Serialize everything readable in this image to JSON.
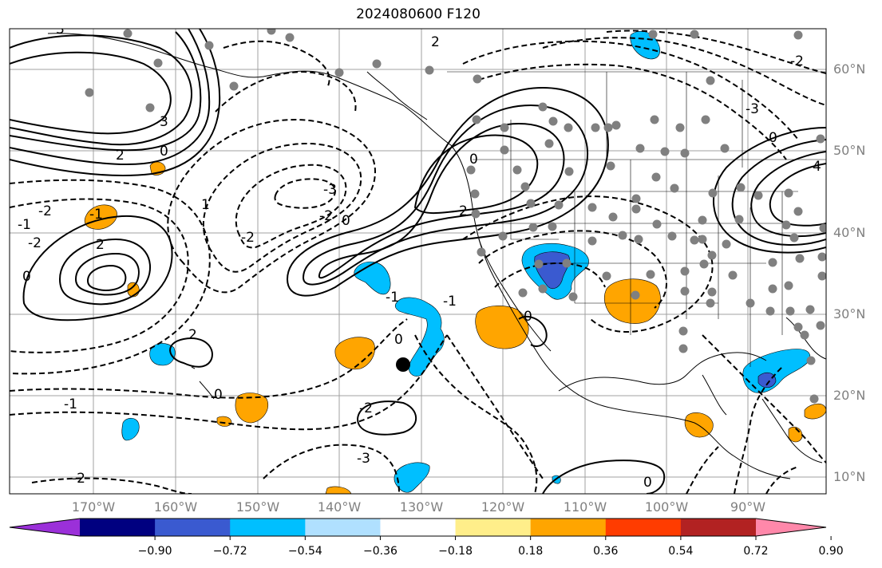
{
  "title": "2024080600 F120",
  "lat_labels": [
    "60°N",
    "50°N",
    "40°N",
    "30°N",
    "20°N",
    "10°N"
  ],
  "lon_labels": [
    "170°W",
    "160°W",
    "150°W",
    "140°W",
    "130°W",
    "120°W",
    "110°W",
    "100°W",
    "90°W"
  ],
  "colorbar": {
    "tick_labels": [
      "−0.90",
      "−0.72",
      "−0.54",
      "−0.36",
      "−0.18",
      "0.18",
      "0.36",
      "0.54",
      "0.72",
      "0.90"
    ],
    "colors": [
      "#9b30d9",
      "#000080",
      "#3a5ad0",
      "#00bfff",
      "#b0e0ff",
      "#ffffff",
      "#ffee8a",
      "#ffa500",
      "#ff3c00",
      "#b22222",
      "#ff88aa"
    ]
  },
  "contour_labels": [
    "3",
    "3",
    "2",
    "0",
    "-1",
    "-2",
    "-3",
    "-2",
    "0",
    "2",
    "0",
    "-1",
    "-2",
    "0",
    "2",
    "1",
    "-2",
    "-1",
    "0",
    "-3",
    "2",
    "2",
    "0",
    "-1",
    "-2",
    "-2",
    "0",
    "0",
    "-1",
    "-3",
    "-2",
    "0",
    "4"
  ],
  "colors": {
    "positive_fill": "#ffa500",
    "negative_fill": "#00bfff",
    "negative_strong": "#3a5ad0",
    "station_dot": "#808080",
    "axis_text": "#808080"
  }
}
